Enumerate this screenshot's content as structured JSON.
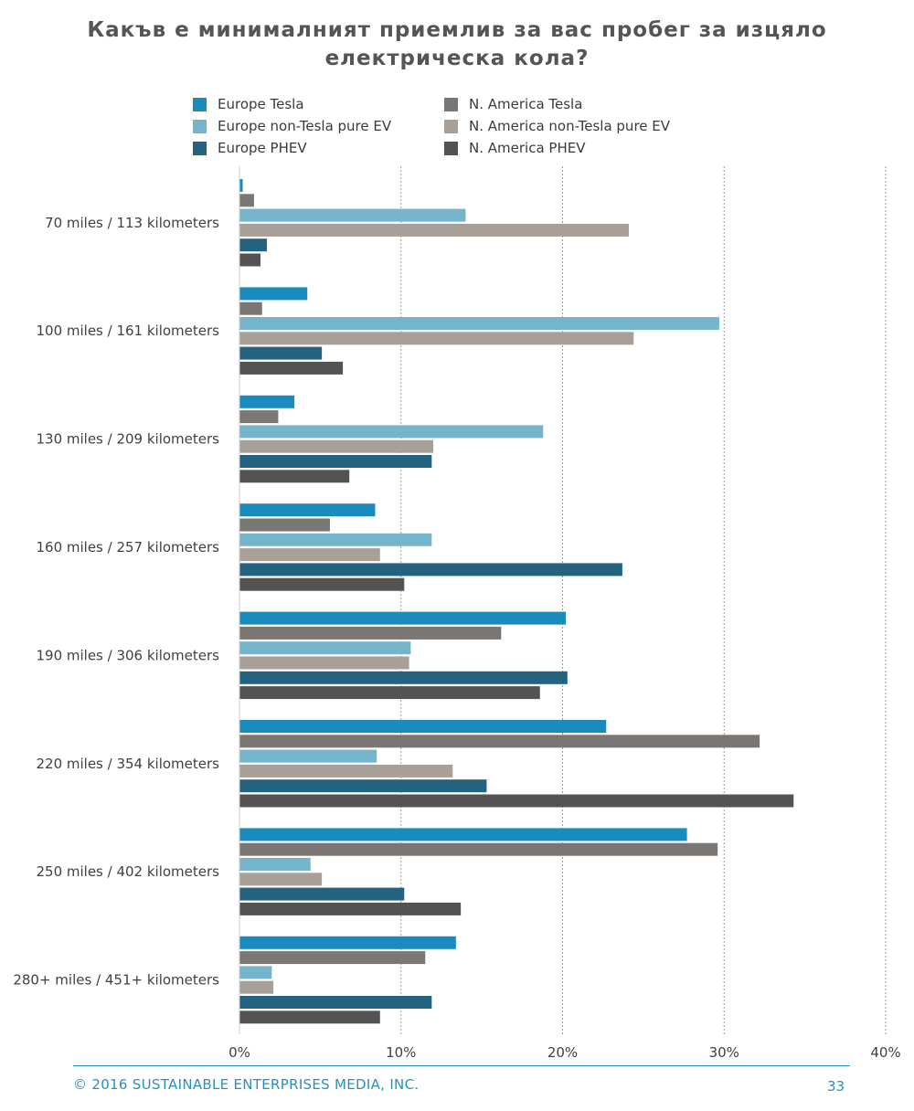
{
  "title_lines": [
    "Какъв е минималният приемлив за вас пробег за изцяло",
    "електрическа кола?"
  ],
  "footer": {
    "copyright": "© 2016   SUSTAINABLE ENTERPRISES MEDIA, INC.",
    "page_number": "33"
  },
  "colors": {
    "europe_tesla": "#1a8bbd",
    "na_tesla": "#7a7673",
    "europe_non_tesla": "#74b5cc",
    "na_non_tesla": "#a8a098",
    "europe_phev": "#246380",
    "na_phev": "#555352",
    "accent": "#2a8fc0"
  },
  "chart_data": {
    "type": "bar",
    "orientation": "horizontal",
    "categories": [
      "70 miles / 113 kilometers",
      "100 miles / 161 kilometers",
      "130 miles / 209 kilometers",
      "160 miles / 257 kilometers",
      "190 miles / 306 kilometers",
      "220 miles / 354 kilometers",
      "250 miles / 402 kilometers",
      "280+ miles / 451+ kilometers"
    ],
    "series": [
      {
        "name": "Europe Tesla",
        "color": "#1a8bbd",
        "values": [
          0.2,
          4.2,
          3.4,
          8.4,
          20.2,
          22.7,
          27.7,
          13.4
        ]
      },
      {
        "name": "N. America Tesla",
        "color": "#7a7673",
        "values": [
          0.9,
          1.4,
          2.4,
          5.6,
          16.2,
          32.2,
          29.6,
          11.5
        ]
      },
      {
        "name": "Europe non-Tesla pure EV",
        "color": "#74b5cc",
        "values": [
          14.0,
          29.7,
          18.8,
          11.9,
          10.6,
          8.5,
          4.4,
          2.0
        ]
      },
      {
        "name": "N. America non-Tesla pure EV",
        "color": "#a8a098",
        "values": [
          24.1,
          24.4,
          12.0,
          8.7,
          10.5,
          13.2,
          5.1,
          2.1
        ]
      },
      {
        "name": "Europe PHEV",
        "color": "#246380",
        "values": [
          1.7,
          5.1,
          11.9,
          23.7,
          20.3,
          15.3,
          10.2,
          11.9
        ]
      },
      {
        "name": "N. America PHEV",
        "color": "#555352",
        "values": [
          1.3,
          6.4,
          6.8,
          10.2,
          18.6,
          34.3,
          13.7,
          8.7
        ]
      }
    ],
    "legend": {
      "placement": "top",
      "columns": [
        [
          "Europe Tesla",
          "Europe non-Tesla pure EV",
          "Europe PHEV"
        ],
        [
          "N. America Tesla",
          "N. America non-Tesla pure EV",
          "N. America PHEV"
        ]
      ]
    },
    "xlim": [
      0,
      40
    ],
    "xticks": [
      "0%",
      "10%",
      "20%",
      "30%",
      "40%"
    ],
    "grid": "vertical dotted",
    "xlabel": "",
    "ylabel": ""
  }
}
